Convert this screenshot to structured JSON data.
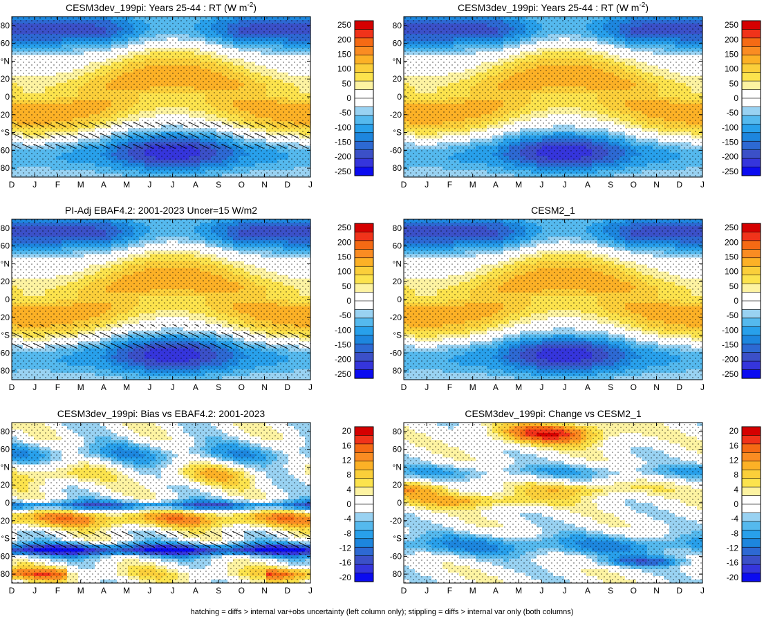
{
  "footer": "hatching = diffs > internal var+obs uncertainty (left column only); stippling = diffs > internal var only (both columns)",
  "chart_data": [
    {
      "type": "heatmap",
      "title": "CESM3dev_199pi: Years 25-44 : RT (W m",
      "title_sup": "-2",
      "title_end": ")",
      "kind": "abs",
      "hatched": true,
      "x": [
        "D",
        "J",
        "F",
        "M",
        "A",
        "M",
        "J",
        "J",
        "A",
        "S",
        "O",
        "N",
        "D",
        "J"
      ],
      "y_ticks": [
        "80",
        "60",
        "°N",
        "20",
        "0",
        "-20",
        "°S",
        "-60",
        "80"
      ],
      "colorbar": {
        "labels": [
          "250",
          "200",
          "150",
          "100",
          "50",
          "0",
          "-50",
          "-100",
          "-150",
          "-200",
          "-250"
        ],
        "colors": [
          "#D50000",
          "#F1331A",
          "#F56A14",
          "#FA8C22",
          "#FCB126",
          "#FBCF3A",
          "#FCE34D",
          "#FDF3A2",
          "#FFFFFF",
          "#FFFFFF",
          "#99D2F2",
          "#55B9EE",
          "#28A0EB",
          "#1D86DE",
          "#2D69D3",
          "#3B50C8",
          "#3535DC",
          "#0B0BF0"
        ]
      },
      "grid": false
    },
    {
      "type": "heatmap",
      "title": "CESM3dev_199pi: Years 25-44 : RT (W m",
      "title_sup": "-2",
      "title_end": ")",
      "kind": "abs",
      "hatched": false,
      "x": [
        "D",
        "J",
        "F",
        "M",
        "A",
        "M",
        "J",
        "J",
        "A",
        "S",
        "O",
        "N",
        "D",
        "J"
      ],
      "y_ticks": [
        "80",
        "60",
        "°N",
        "20",
        "0",
        "-20",
        "°S",
        "-60",
        "80"
      ],
      "colorbar": {
        "labels": [
          "250",
          "200",
          "150",
          "100",
          "50",
          "0",
          "-50",
          "-100",
          "-150",
          "-200",
          "-250"
        ],
        "colors": [
          "#D50000",
          "#F1331A",
          "#F56A14",
          "#FA8C22",
          "#FCB126",
          "#FBCF3A",
          "#FCE34D",
          "#FDF3A2",
          "#FFFFFF",
          "#FFFFFF",
          "#99D2F2",
          "#55B9EE",
          "#28A0EB",
          "#1D86DE",
          "#2D69D3",
          "#3B50C8",
          "#3535DC",
          "#0B0BF0"
        ]
      },
      "grid": false
    },
    {
      "type": "heatmap",
      "title": "PI-Adj EBAF4.2: 2001-2023 Uncer=15 W/m2",
      "kind": "abs",
      "hatched": true,
      "x": [
        "D",
        "J",
        "F",
        "M",
        "A",
        "M",
        "J",
        "J",
        "A",
        "S",
        "O",
        "N",
        "D",
        "J"
      ],
      "y_ticks": [
        "80",
        "60",
        "°N",
        "20",
        "0",
        "-20",
        "°S",
        "-60",
        "80"
      ],
      "colorbar": {
        "labels": [
          "250",
          "200",
          "150",
          "100",
          "50",
          "0",
          "-50",
          "-100",
          "-150",
          "-200",
          "-250"
        ],
        "colors": [
          "#D50000",
          "#F1331A",
          "#F56A14",
          "#FA8C22",
          "#FCB126",
          "#FBCF3A",
          "#FCE34D",
          "#FDF3A2",
          "#FFFFFF",
          "#FFFFFF",
          "#99D2F2",
          "#55B9EE",
          "#28A0EB",
          "#1D86DE",
          "#2D69D3",
          "#3B50C8",
          "#3535DC",
          "#0B0BF0"
        ]
      },
      "grid": false
    },
    {
      "type": "heatmap",
      "title": "CESM2_1",
      "kind": "abs",
      "hatched": false,
      "x": [
        "D",
        "J",
        "F",
        "M",
        "A",
        "M",
        "J",
        "J",
        "A",
        "S",
        "O",
        "N",
        "D",
        "J"
      ],
      "y_ticks": [
        "80",
        "60",
        "°N",
        "20",
        "0",
        "-20",
        "°S",
        "-60",
        "80"
      ],
      "colorbar": {
        "labels": [
          "250",
          "200",
          "150",
          "100",
          "50",
          "0",
          "-50",
          "-100",
          "-150",
          "-200",
          "-250"
        ],
        "colors": [
          "#D50000",
          "#F1331A",
          "#F56A14",
          "#FA8C22",
          "#FCB126",
          "#FBCF3A",
          "#FCE34D",
          "#FDF3A2",
          "#FFFFFF",
          "#FFFFFF",
          "#99D2F2",
          "#55B9EE",
          "#28A0EB",
          "#1D86DE",
          "#2D69D3",
          "#3B50C8",
          "#3535DC",
          "#0B0BF0"
        ]
      },
      "grid": false
    },
    {
      "type": "heatmap",
      "title": "CESM3dev_199pi: Bias vs EBAF4.2: 2001-2023",
      "kind": "bias",
      "hatched": true,
      "x": [
        "D",
        "J",
        "F",
        "M",
        "A",
        "M",
        "J",
        "J",
        "A",
        "S",
        "O",
        "N",
        "D",
        "J"
      ],
      "y_ticks": [
        "80",
        "60",
        "°N",
        "20",
        "0",
        "-20",
        "°S",
        "-60",
        "80"
      ],
      "colorbar": {
        "labels": [
          "20",
          "16",
          "12",
          "8",
          "4",
          "0",
          "-4",
          "-8",
          "-12",
          "-16",
          "-20"
        ],
        "colors": [
          "#D50000",
          "#F1331A",
          "#F56A14",
          "#FA8C22",
          "#FCB126",
          "#FBCF3A",
          "#FCE34D",
          "#FDF3A2",
          "#FFFFFF",
          "#FFFFFF",
          "#99D2F2",
          "#55B9EE",
          "#28A0EB",
          "#1D86DE",
          "#2D69D3",
          "#3B50C8",
          "#3535DC",
          "#0B0BF0"
        ]
      },
      "grid": false
    },
    {
      "type": "heatmap",
      "title": "CESM3dev_199pi: Change vs CESM2_1",
      "kind": "change",
      "hatched": false,
      "x": [
        "D",
        "J",
        "F",
        "M",
        "A",
        "M",
        "J",
        "J",
        "A",
        "S",
        "O",
        "N",
        "D",
        "J"
      ],
      "y_ticks": [
        "80",
        "60",
        "°N",
        "20",
        "0",
        "-20",
        "°S",
        "-60",
        "80"
      ],
      "colorbar": {
        "labels": [
          "20",
          "16",
          "12",
          "8",
          "4",
          "0",
          "-4",
          "-8",
          "-12",
          "-16",
          "-20"
        ],
        "colors": [
          "#D50000",
          "#F1331A",
          "#F56A14",
          "#FA8C22",
          "#FCB126",
          "#FBCF3A",
          "#FCE34D",
          "#FDF3A2",
          "#FFFFFF",
          "#FFFFFF",
          "#99D2F2",
          "#55B9EE",
          "#28A0EB",
          "#1D86DE",
          "#2D69D3",
          "#3B50C8",
          "#3535DC",
          "#0B0BF0"
        ]
      },
      "grid": false
    }
  ]
}
